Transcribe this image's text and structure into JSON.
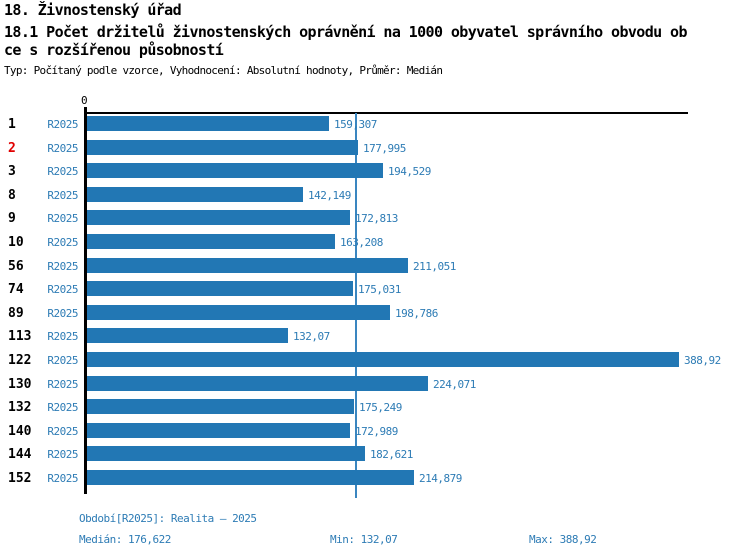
{
  "header": {
    "title": "18. Živnostenský úřad",
    "subtitle_line1": "18.1 Počet držitelů živnostenských oprávnění na 1000 obyvatel správního obvodu ob",
    "subtitle_line2": "ce s rozšířenou působností",
    "meta": "Typ: Počítaný podle vzorce, Vyhodnocení: Absolutní hodnoty, Průměr: Medián"
  },
  "chart_data": {
    "type": "bar",
    "orientation": "horizontal",
    "title": "18. Živnostenský úřad",
    "subtitle": "18.1 Počet držitelů živnostenských oprávnění na 1000 obyvatel správního obvodu obce s rozšířenou působností",
    "series_name": "R2025",
    "zero_label": "0",
    "x_min": 0,
    "x_max": 388.92,
    "median": 176.622,
    "categories": [
      "1",
      "2",
      "3",
      "8",
      "9",
      "10",
      "56",
      "74",
      "89",
      "113",
      "122",
      "130",
      "132",
      "140",
      "144",
      "152"
    ],
    "rows": [
      {
        "category": "1",
        "period": "R2025",
        "value": 159.307,
        "label": "159,307",
        "highlight": false
      },
      {
        "category": "2",
        "period": "R2025",
        "value": 177.995,
        "label": "177,995",
        "highlight": true
      },
      {
        "category": "3",
        "period": "R2025",
        "value": 194.529,
        "label": "194,529",
        "highlight": false
      },
      {
        "category": "8",
        "period": "R2025",
        "value": 142.149,
        "label": "142,149",
        "highlight": false
      },
      {
        "category": "9",
        "period": "R2025",
        "value": 172.813,
        "label": "172,813",
        "highlight": false
      },
      {
        "category": "10",
        "period": "R2025",
        "value": 163.208,
        "label": "163,208",
        "highlight": false
      },
      {
        "category": "56",
        "period": "R2025",
        "value": 211.051,
        "label": "211,051",
        "highlight": false
      },
      {
        "category": "74",
        "period": "R2025",
        "value": 175.031,
        "label": "175,031",
        "highlight": false
      },
      {
        "category": "89",
        "period": "R2025",
        "value": 198.786,
        "label": "198,786",
        "highlight": false
      },
      {
        "category": "113",
        "period": "R2025",
        "value": 132.07,
        "label": "132,07",
        "highlight": false
      },
      {
        "category": "122",
        "period": "R2025",
        "value": 388.92,
        "label": "388,92",
        "highlight": false
      },
      {
        "category": "130",
        "period": "R2025",
        "value": 224.071,
        "label": "224,071",
        "highlight": false
      },
      {
        "category": "132",
        "period": "R2025",
        "value": 175.249,
        "label": "175,249",
        "highlight": false
      },
      {
        "category": "140",
        "period": "R2025",
        "value": 172.989,
        "label": "172,989",
        "highlight": false
      },
      {
        "category": "144",
        "period": "R2025",
        "value": 182.621,
        "label": "182,621",
        "highlight": false
      },
      {
        "category": "152",
        "period": "R2025",
        "value": 214.879,
        "label": "214,879",
        "highlight": false
      }
    ],
    "colors": {
      "bar": "#2277b4",
      "median_line": "#3a86c0",
      "text_blue": "#2e7cb5",
      "highlight_red": "#e10000"
    },
    "legend_position": "none",
    "grid": false
  },
  "footer": {
    "period_label": "Období[R2025]: Realita – 2025",
    "median_label": "Medián: 176,622",
    "min_label": "Min: 132,07",
    "max_label": "Max: 388,92"
  }
}
